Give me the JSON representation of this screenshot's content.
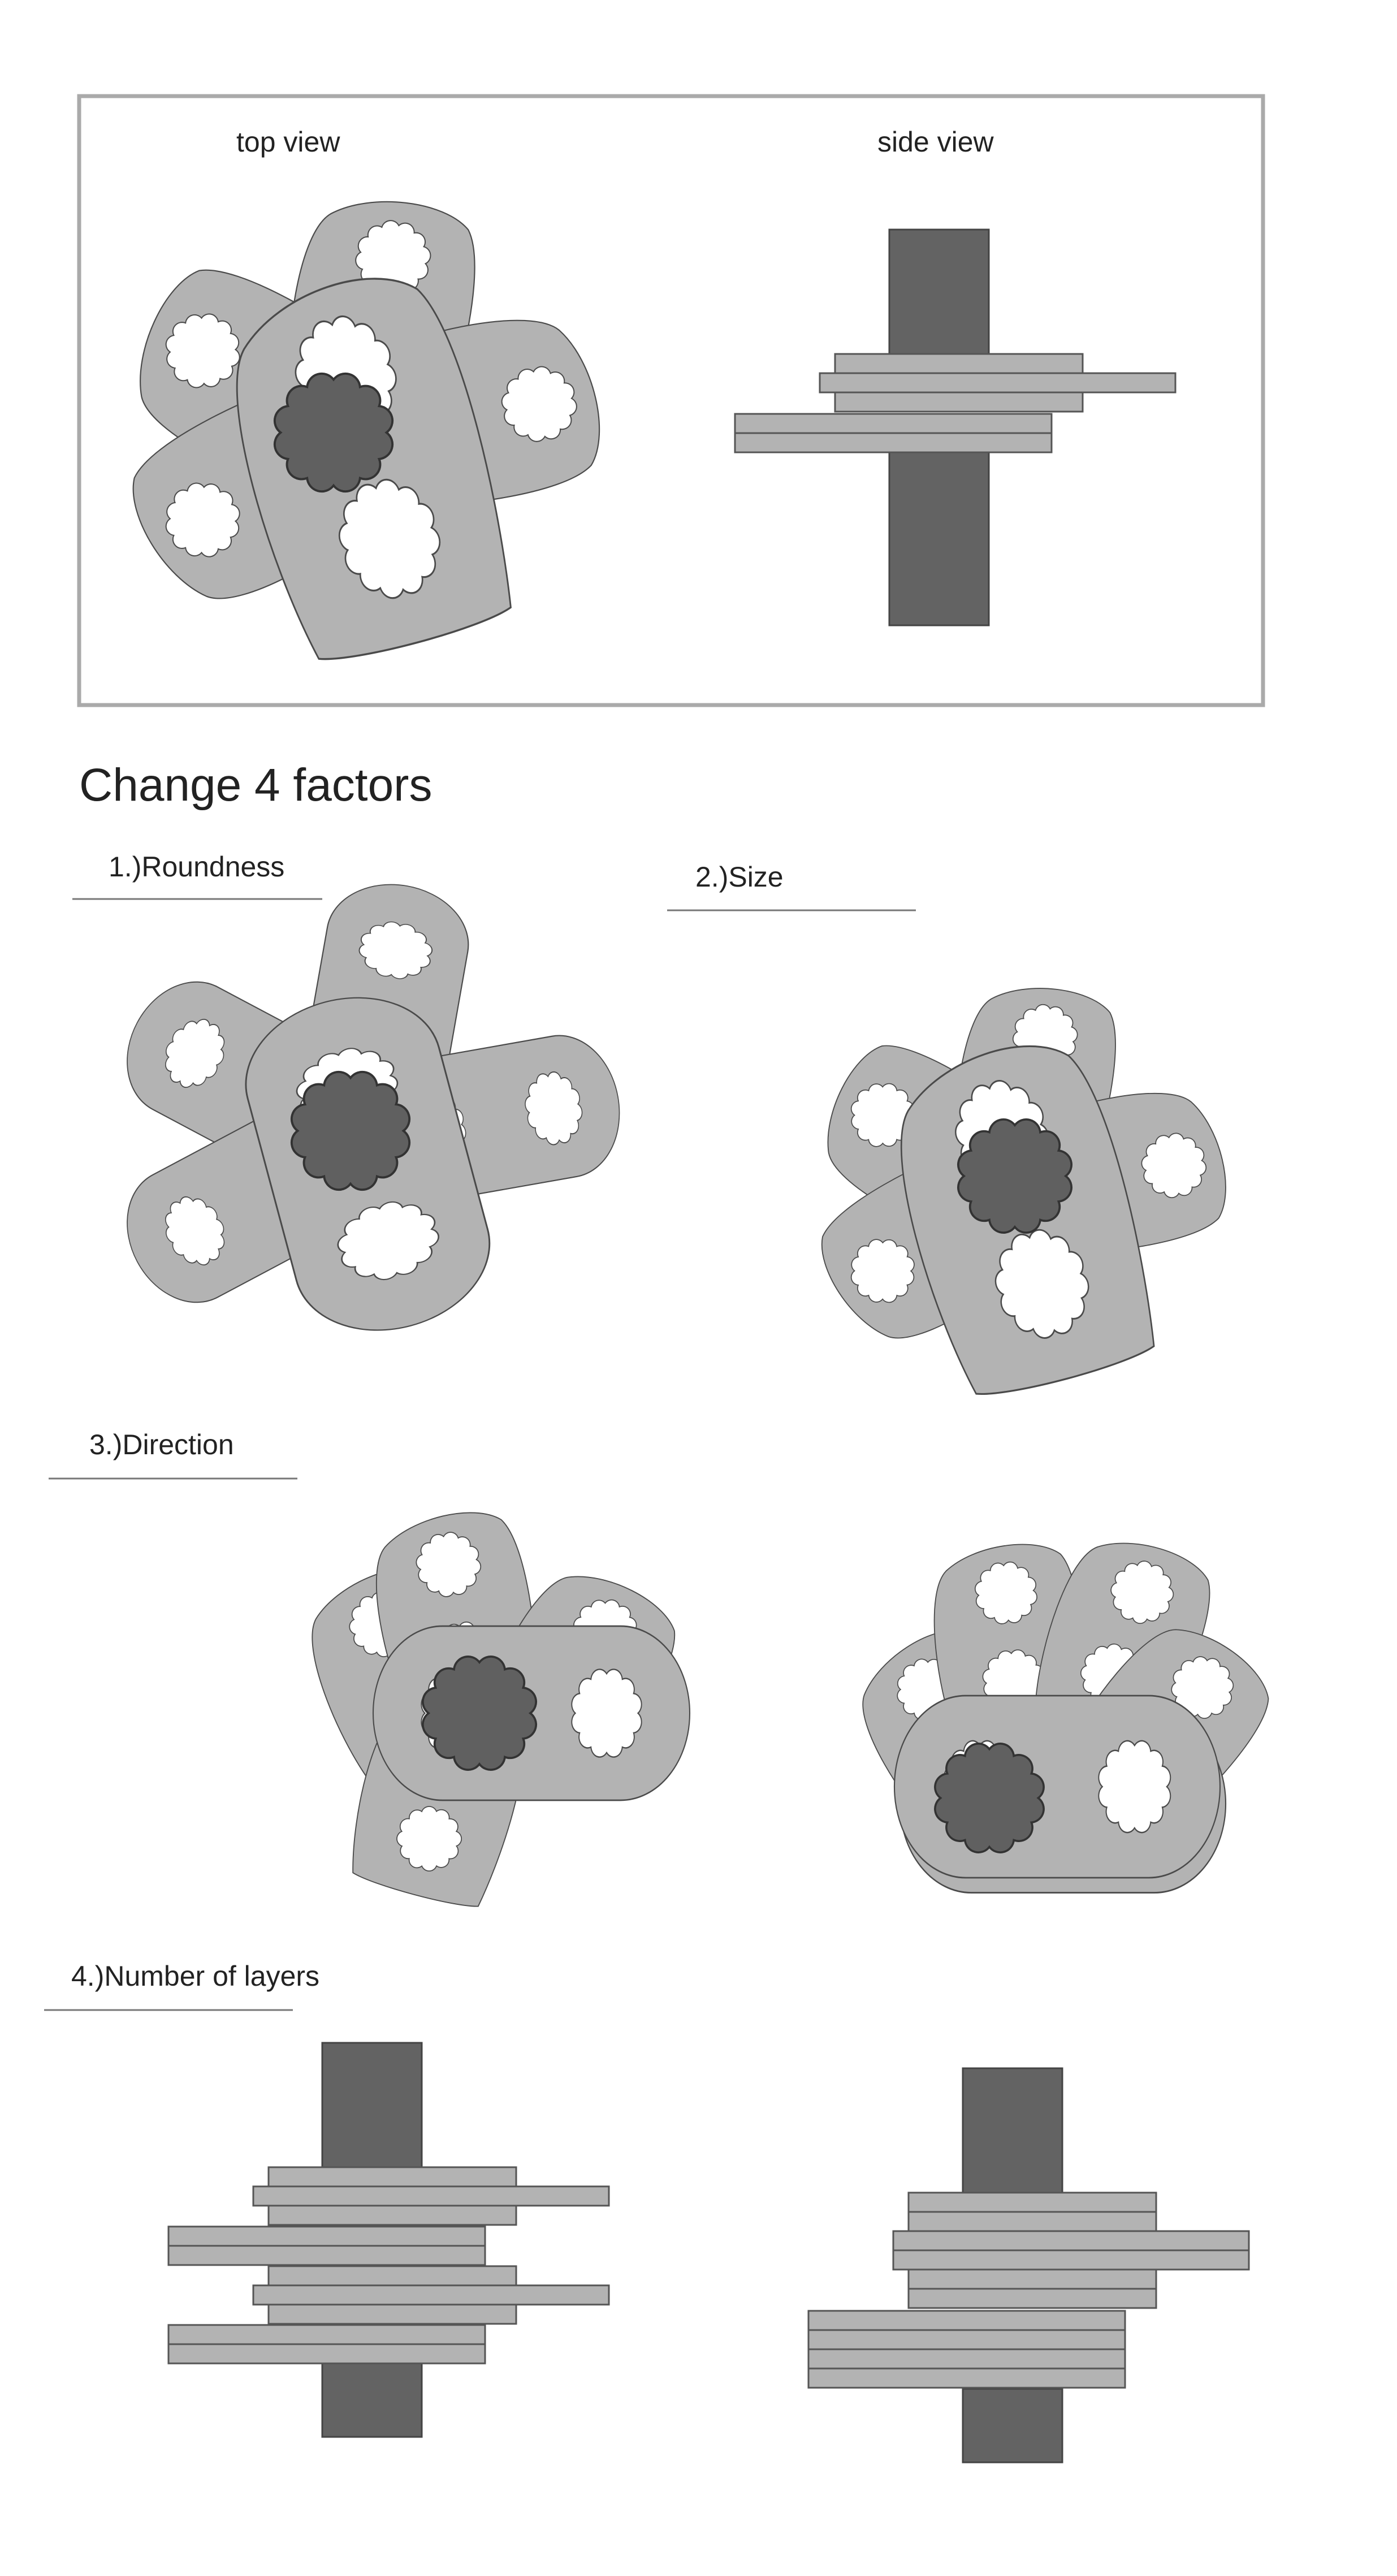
{
  "top_panel": {
    "top_view_label": "top view",
    "side_view_label": "side view"
  },
  "heading": "Change 4 factors",
  "factors": {
    "roundness": "1.)Roundness",
    "size": "2.)Size",
    "direction": "3.)Direction",
    "layers": "4.)Number of layers"
  },
  "colors": {
    "petal_fill": "#b3b3b3",
    "core_fill": "#606060",
    "frame_stroke": "#aaaaaa",
    "outline": "#4a4a4a"
  }
}
